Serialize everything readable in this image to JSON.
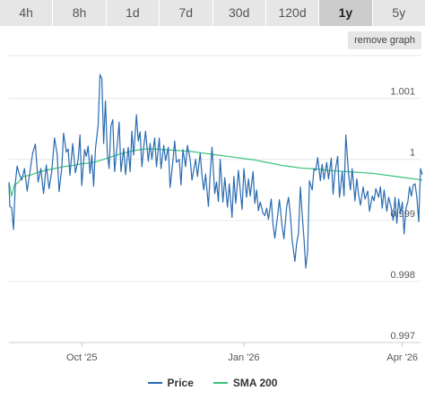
{
  "tabs": [
    {
      "label": "4h",
      "active": false
    },
    {
      "label": "8h",
      "active": false
    },
    {
      "label": "1d",
      "active": false
    },
    {
      "label": "7d",
      "active": false
    },
    {
      "label": "30d",
      "active": false
    },
    {
      "label": "120d",
      "active": false
    },
    {
      "label": "1y",
      "active": true
    },
    {
      "label": "5y",
      "active": false
    }
  ],
  "remove_graph_label": "remove graph",
  "colors": {
    "price": "#2a6bb0",
    "sma": "#39c47a"
  },
  "chart_data": {
    "type": "line",
    "ylim": [
      0.997,
      1.0017
    ],
    "xlim": [
      0,
      452
    ],
    "y_ticks": [
      {
        "value": 0.997,
        "label": "0.997"
      },
      {
        "value": 0.998,
        "label": "0.998"
      },
      {
        "value": 0.999,
        "label": "0.999"
      },
      {
        "value": 1.0,
        "label": "1"
      },
      {
        "value": 1.001,
        "label": "1.001"
      }
    ],
    "x_ticks": [
      {
        "value": 80,
        "label": "Oct '25"
      },
      {
        "value": 258,
        "label": "Jan '26"
      },
      {
        "value": 432,
        "label": "Apr '26"
      }
    ],
    "grid": true,
    "legend_position": "bottom",
    "series": [
      {
        "name": "Price",
        "points": [
          [
            0,
            0.99961
          ],
          [
            1,
            0.99923
          ],
          [
            3,
            0.99921
          ],
          [
            5,
            0.99885
          ],
          [
            7,
            0.99961
          ],
          [
            9,
            0.99989
          ],
          [
            11,
            0.99977
          ],
          [
            14,
            0.99966
          ],
          [
            17,
            0.99985
          ],
          [
            20,
            0.99948
          ],
          [
            23,
            0.9998
          ],
          [
            26,
            1.0001
          ],
          [
            29,
            1.00025
          ],
          [
            32,
            0.99963
          ],
          [
            35,
            0.99985
          ],
          [
            38,
            0.99944
          ],
          [
            41,
            0.99991
          ],
          [
            44,
            0.99952
          ],
          [
            47,
            0.9998
          ],
          [
            50,
            1.00035
          ],
          [
            53,
            1.00008
          ],
          [
            55,
            0.99947
          ],
          [
            58,
            0.99986
          ],
          [
            60,
            1.00043
          ],
          [
            63,
            1.00012
          ],
          [
            65,
            1.00017
          ],
          [
            67,
            0.99974
          ],
          [
            70,
            1.00026
          ],
          [
            73,
            0.99978
          ],
          [
            76,
            1.0
          ],
          [
            78,
            1.0004
          ],
          [
            80,
            0.99957
          ],
          [
            83,
            1.00016
          ],
          [
            85,
            1.00005
          ],
          [
            87,
            1.00022
          ],
          [
            89,
            0.99977
          ],
          [
            91,
            1.00007
          ],
          [
            93,
            0.99956
          ],
          [
            95,
            1.00018
          ],
          [
            98,
            1.00056
          ],
          [
            100,
            1.00139
          ],
          [
            102,
            1.00132
          ],
          [
            104,
            1.00026
          ],
          [
            106,
            1.00096
          ],
          [
            108,
            1.0001
          ],
          [
            110,
            0.99985
          ],
          [
            112,
            1.00055
          ],
          [
            114,
            1.00065
          ],
          [
            116,
            0.9998
          ],
          [
            119,
            1.00025
          ],
          [
            121,
            1.00061
          ],
          [
            123,
            0.9998
          ],
          [
            126,
            1.00018
          ],
          [
            128,
            0.99975
          ],
          [
            131,
            1.0002
          ],
          [
            133,
            0.9998
          ],
          [
            135,
            1.00046
          ],
          [
            137,
            1.00007
          ],
          [
            140,
            1.00073
          ],
          [
            142,
            1.0003
          ],
          [
            144,
            1.00045
          ],
          [
            146,
            0.99988
          ],
          [
            148,
            1.0002
          ],
          [
            150,
            1.00046
          ],
          [
            153,
            0.99997
          ],
          [
            155,
            1.00026
          ],
          [
            157,
            1.0
          ],
          [
            160,
            1.00035
          ],
          [
            162,
            0.99988
          ],
          [
            165,
            1.00035
          ],
          [
            167,
            0.99985
          ],
          [
            170,
            1.00023
          ],
          [
            172,
            0.99998
          ],
          [
            175,
            1.0002
          ],
          [
            177,
            0.99954
          ],
          [
            180,
            0.99997
          ],
          [
            182,
            1.0003
          ],
          [
            184,
            0.99995
          ],
          [
            187,
            1.0
          ],
          [
            189,
            0.99958
          ],
          [
            191,
            1.00016
          ],
          [
            194,
            0.99988
          ],
          [
            196,
            1.00023
          ],
          [
            199,
            1.0
          ],
          [
            201,
            0.99966
          ],
          [
            203,
            0.99983
          ],
          [
            205,
            1.0
          ],
          [
            207,
            0.99972
          ],
          [
            210,
            1.0001
          ],
          [
            212,
            0.99973
          ],
          [
            214,
            0.9995
          ],
          [
            216,
            0.99976
          ],
          [
            219,
            0.99923
          ],
          [
            221,
            0.99975
          ],
          [
            223,
            1.0002
          ],
          [
            226,
            0.99944
          ],
          [
            228,
            0.99963
          ],
          [
            230,
            0.99931
          ],
          [
            232,
            1.0
          ],
          [
            235,
            0.9993
          ],
          [
            237,
            0.9997
          ],
          [
            240,
            0.99922
          ],
          [
            242,
            0.9996
          ],
          [
            245,
            0.99905
          ],
          [
            247,
            0.99972
          ],
          [
            249,
            0.99928
          ],
          [
            252,
            0.99982
          ],
          [
            254,
            0.9995
          ],
          [
            256,
            0.99918
          ],
          [
            258,
            0.99985
          ],
          [
            261,
            0.99938
          ],
          [
            263,
            0.99968
          ],
          [
            265,
            0.9994
          ],
          [
            268,
            0.9998
          ],
          [
            270,
            0.99928
          ],
          [
            272,
            0.9995
          ],
          [
            274,
            0.99916
          ],
          [
            276,
            0.9993
          ],
          [
            279,
            0.99912
          ],
          [
            281,
            0.99908
          ],
          [
            283,
            0.9992
          ],
          [
            285,
            0.99902
          ],
          [
            288,
            0.99935
          ],
          [
            290,
            0.99893
          ],
          [
            292,
            0.99871
          ],
          [
            295,
            0.99907
          ],
          [
            297,
            0.99934
          ],
          [
            300,
            0.99891
          ],
          [
            302,
            0.9987
          ],
          [
            305,
            0.99922
          ],
          [
            307,
            0.99938
          ],
          [
            309,
            0.9991
          ],
          [
            311,
            0.99868
          ],
          [
            314,
            0.99833
          ],
          [
            316,
            0.99863
          ],
          [
            318,
            0.99879
          ],
          [
            320,
            0.99955
          ],
          [
            322,
            0.9991
          ],
          [
            324,
            0.99871
          ],
          [
            326,
            0.99822
          ],
          [
            328,
            0.9985
          ],
          [
            330,
            0.99965
          ],
          [
            333,
            0.9995
          ],
          [
            335,
            0.99985
          ],
          [
            337,
            0.99982
          ],
          [
            339,
            1.00003
          ],
          [
            342,
            0.99965
          ],
          [
            344,
            0.99992
          ],
          [
            346,
            0.99967
          ],
          [
            349,
            0.99995
          ],
          [
            351,
            0.99968
          ],
          [
            354,
            1.00002
          ],
          [
            356,
            0.99943
          ],
          [
            358,
            0.99978
          ],
          [
            361,
            1.00005
          ],
          [
            363,
            0.99938
          ],
          [
            366,
            0.9998
          ],
          [
            368,
            0.9994
          ],
          [
            370,
            1.0004
          ],
          [
            373,
            0.99975
          ],
          [
            375,
            0.9995
          ],
          [
            377,
            0.99985
          ],
          [
            380,
            0.99932
          ],
          [
            382,
            0.99968
          ],
          [
            384,
            0.99942
          ],
          [
            386,
            0.99925
          ],
          [
            389,
            0.99955
          ],
          [
            391,
            0.99935
          ],
          [
            394,
            0.99948
          ],
          [
            396,
            0.99915
          ],
          [
            399,
            0.9994
          ],
          [
            401,
            0.99932
          ],
          [
            403,
            0.99952
          ],
          [
            406,
            0.99938
          ],
          [
            408,
            0.99955
          ],
          [
            410,
            0.9992
          ],
          [
            412,
            0.9995
          ],
          [
            415,
            0.99915
          ],
          [
            417,
            0.99938
          ],
          [
            420,
            0.9992
          ],
          [
            422,
            0.999
          ],
          [
            424,
            0.99938
          ],
          [
            426,
            0.99895
          ],
          [
            428,
            0.99935
          ],
          [
            430,
            0.99912
          ],
          [
            432,
            0.9993
          ],
          [
            434,
            0.99878
          ],
          [
            436,
            0.9992
          ],
          [
            438,
            0.9993
          ],
          [
            440,
            0.99955
          ],
          [
            442,
            0.9994
          ],
          [
            444,
            0.99958
          ],
          [
            446,
            0.9996
          ],
          [
            448,
            0.99938
          ],
          [
            450,
            0.99898
          ],
          [
            452,
            0.99985
          ],
          [
            454,
            0.99975
          ]
        ]
      },
      {
        "name": "SMA 200",
        "points": [
          [
            0,
            0.99963
          ],
          [
            3,
            0.9994
          ],
          [
            6,
            0.99958
          ],
          [
            10,
            0.99962
          ],
          [
            15,
            0.99972
          ],
          [
            20,
            0.99973
          ],
          [
            25,
            0.99975
          ],
          [
            30,
            0.99978
          ],
          [
            40,
            0.99982
          ],
          [
            50,
            0.99985
          ],
          [
            60,
            0.99988
          ],
          [
            70,
            0.9999
          ],
          [
            80,
            0.99993
          ],
          [
            90,
            0.99994
          ],
          [
            100,
            0.99998
          ],
          [
            110,
            1.00003
          ],
          [
            120,
            1.00008
          ],
          [
            130,
            1.00012
          ],
          [
            140,
            1.00015
          ],
          [
            150,
            1.00017
          ],
          [
            160,
            1.00017
          ],
          [
            170,
            1.00016
          ],
          [
            180,
            1.00015
          ],
          [
            190,
            1.00014
          ],
          [
            200,
            1.00013
          ],
          [
            210,
            1.00011
          ],
          [
            220,
            1.00009
          ],
          [
            230,
            1.00007
          ],
          [
            240,
            1.00005
          ],
          [
            250,
            1.00003
          ],
          [
            260,
            1.00001
          ],
          [
            270,
            0.99999
          ],
          [
            280,
            0.99996
          ],
          [
            290,
            0.99993
          ],
          [
            300,
            0.9999
          ],
          [
            310,
            0.99988
          ],
          [
            320,
            0.99986
          ],
          [
            330,
            0.99985
          ],
          [
            340,
            0.99984
          ],
          [
            350,
            0.99982
          ],
          [
            360,
            0.99981
          ],
          [
            370,
            0.9998
          ],
          [
            380,
            0.99979
          ],
          [
            390,
            0.99978
          ],
          [
            400,
            0.99977
          ],
          [
            410,
            0.99975
          ],
          [
            420,
            0.99973
          ],
          [
            430,
            0.99971
          ],
          [
            440,
            0.99969
          ],
          [
            450,
            0.99967
          ],
          [
            454,
            0.99966
          ]
        ]
      }
    ]
  }
}
